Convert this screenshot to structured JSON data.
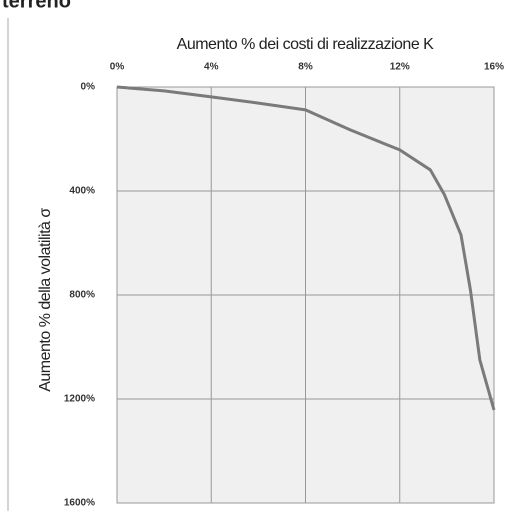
{
  "heading": "terreno",
  "chart_data": {
    "type": "line",
    "title": "Aumento % dei costi di realizzazione K",
    "y_label": "Aumento % della volatilità σ",
    "x": [
      0,
      2,
      4,
      6,
      8,
      9.9,
      12,
      13.3,
      13.9,
      14.6,
      15,
      15.4,
      16
    ],
    "series": [
      {
        "name": null,
        "color": "#7a7a7a",
        "values": [
          0,
          15,
          38,
          62,
          88,
          165,
          242,
          319,
          415,
          569,
          781,
          1050,
          1242
        ]
      }
    ],
    "xlim": [
      0,
      16
    ],
    "xticks": [
      {
        "value": 0,
        "label": "0%"
      },
      {
        "value": 4,
        "label": "4%"
      },
      {
        "value": 8,
        "label": "8%"
      },
      {
        "value": 12,
        "label": "12%"
      },
      {
        "value": 16,
        "label": "16%"
      }
    ],
    "ylim": [
      0,
      1600
    ],
    "yticks": [
      {
        "value": 0,
        "label": "0%"
      },
      {
        "value": 400,
        "label": "400%"
      },
      {
        "value": 800,
        "label": "800%"
      },
      {
        "value": 1200,
        "label": "1200%"
      },
      {
        "value": 1600,
        "label": "1600%"
      }
    ],
    "y_inverted": true,
    "x_axis_position": "top",
    "grid": true
  }
}
